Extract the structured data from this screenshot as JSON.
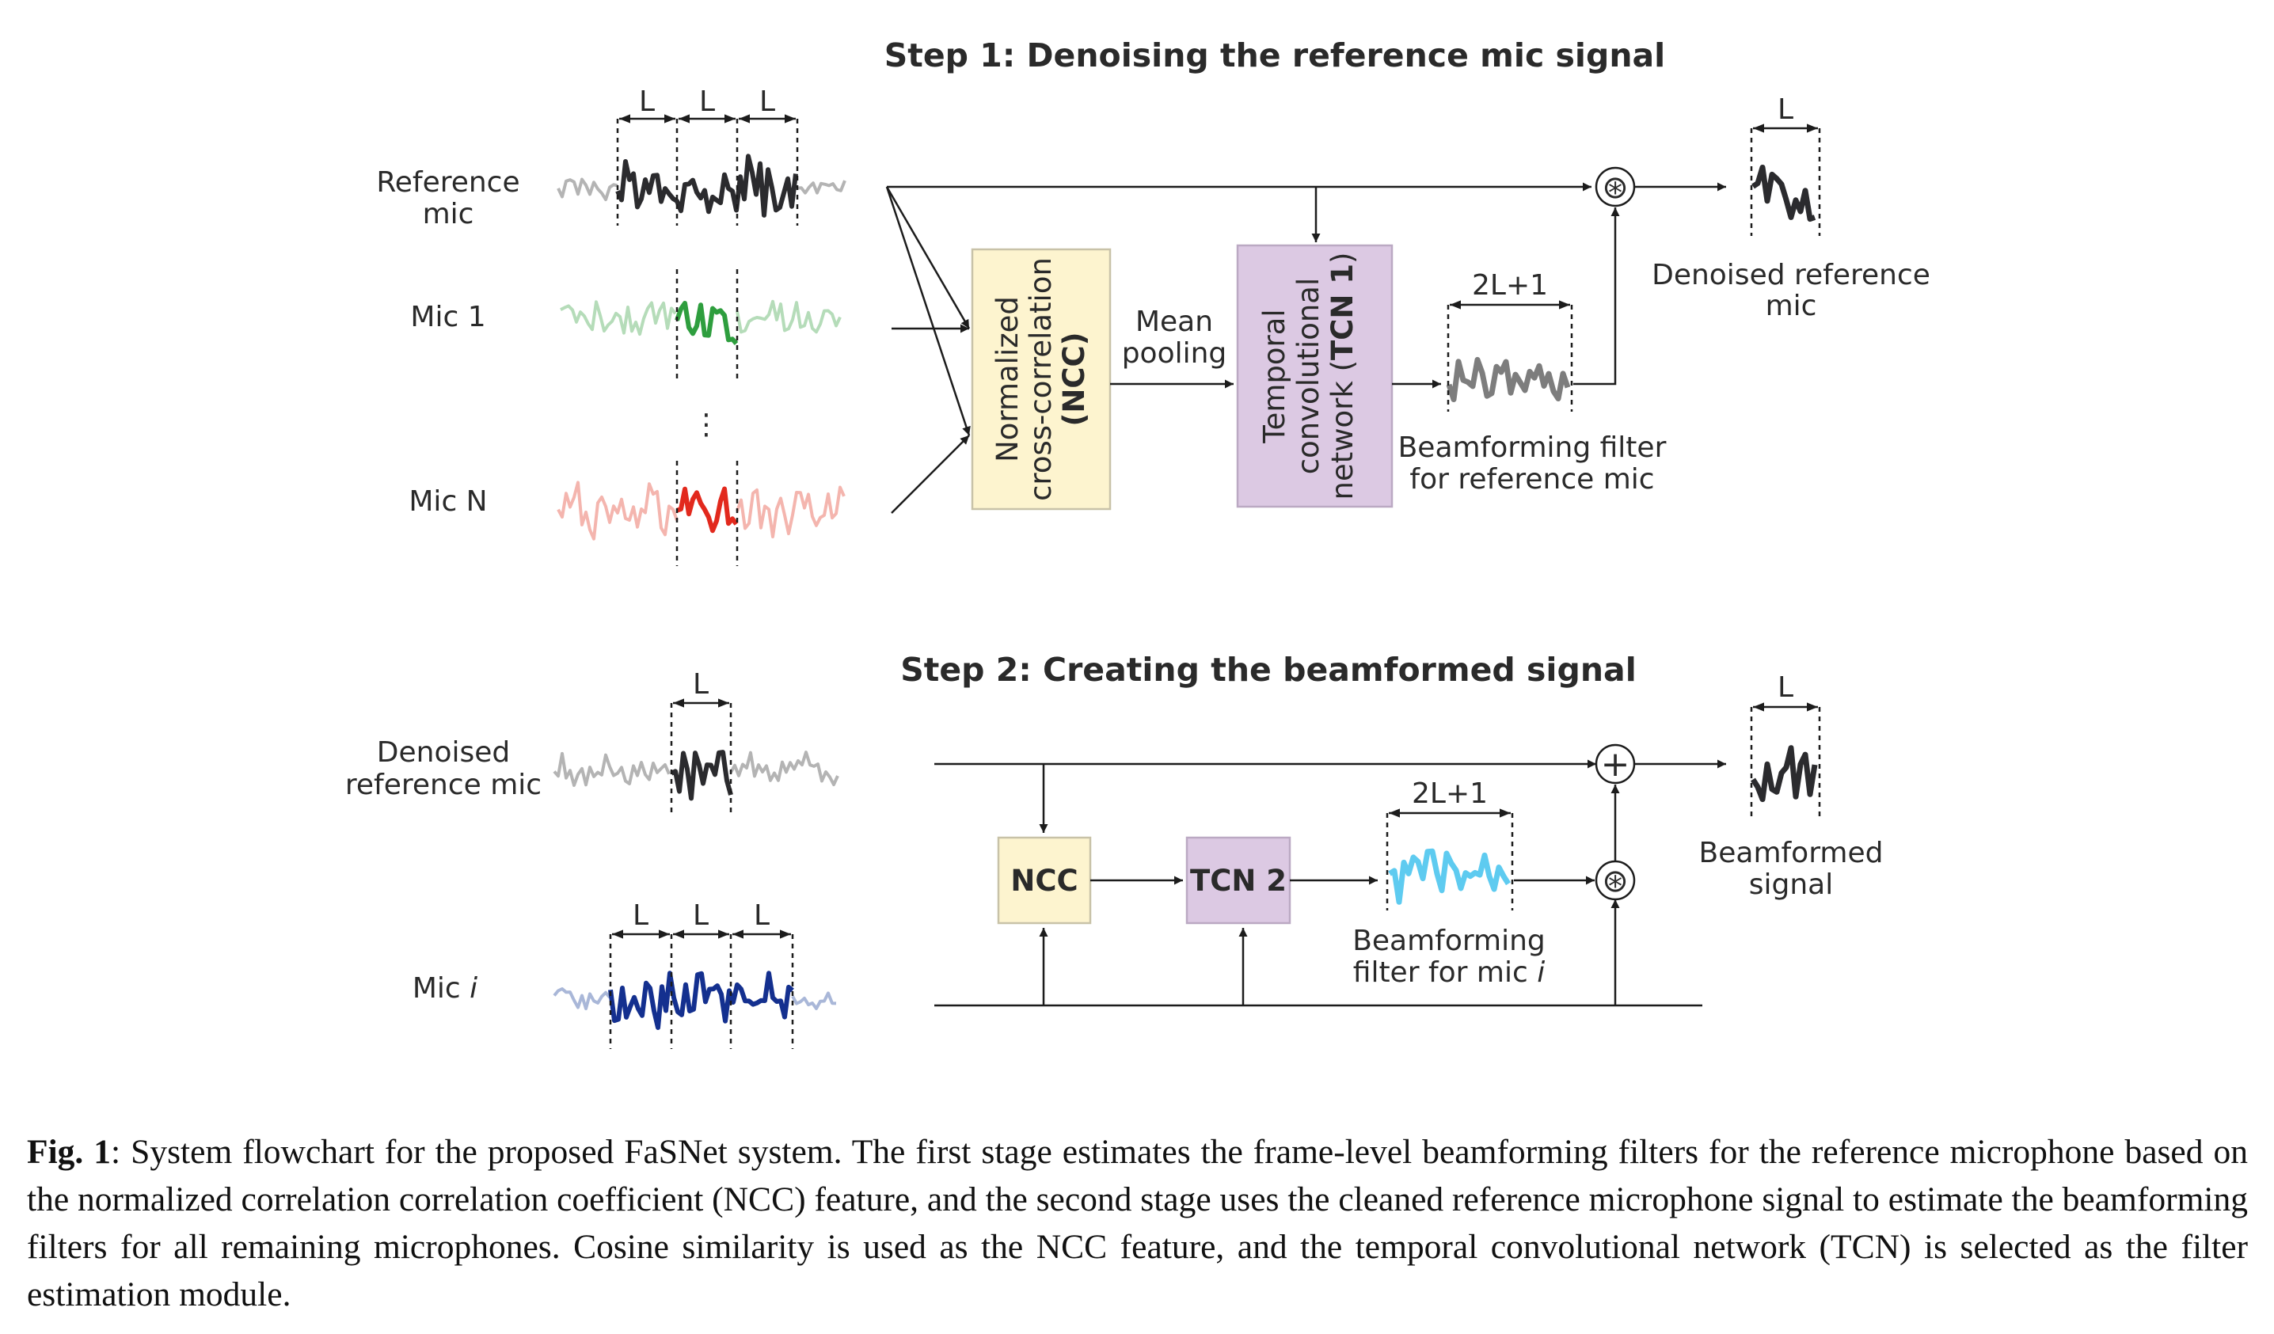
{
  "step1": {
    "title": "Step 1: Denoising the reference mic signal",
    "inputs": {
      "reference_line1": "Reference",
      "reference_line2": "mic",
      "mic1": "Mic 1",
      "ellipsis": "⋮",
      "micN": "Mic N"
    },
    "segment_label": "L",
    "ncc_box": {
      "line1": "Normalized",
      "line2": "cross-correlation",
      "line3": "(NCC)"
    },
    "pooling": {
      "line1": "Mean",
      "line2": "pooling"
    },
    "tcn_box": {
      "line1": "Temporal",
      "line2": "convolutional",
      "line3_prefix": "network (",
      "line3_bold": "TCN 1",
      "line3_suffix": ")"
    },
    "filter_len": "2L+1",
    "filter_caption": {
      "line1": "Beamforming filter",
      "line2": "for reference mic"
    },
    "multiply_op": "⊛",
    "output_len": "L",
    "output": {
      "line1": "Denoised reference",
      "line2": "mic"
    }
  },
  "step2": {
    "title": "Step 2: Creating the beamformed signal",
    "inputs": {
      "denoised_line1": "Denoised",
      "denoised_line2": "reference mic",
      "mic_i_prefix": "Mic ",
      "mic_i_italic": "i"
    },
    "segment_label": "L",
    "ncc_box": "NCC",
    "tcn_box": "TCN 2",
    "filter_len": "2L+1",
    "filter_caption": {
      "line1": "Beamforming",
      "line2_prefix": "filter for mic ",
      "line2_italic": "i"
    },
    "multiply_op": "⊛",
    "add_op": "+",
    "output_len": "L",
    "output": {
      "line1": "Beamformed",
      "line2": "signal"
    }
  },
  "colors": {
    "reference": "#2b2b2e",
    "reference_faded": "#b4b4b4",
    "mic1": "#2e9e3e",
    "mic1_faded": "#b5dcb9",
    "micN": "#e2291d",
    "micN_faded": "#f4b5ae",
    "mic_i": "#14308f",
    "mic_i_faded": "#a9b7d8",
    "filter1": "#7d7d7d",
    "filter2": "#5ecbf0",
    "ncc_fill": "#fdf4cf",
    "tcn_fill": "#dcc9e3"
  },
  "caption": {
    "label": "Fig. 1",
    "text": ": System flowchart for the proposed FaSNet system.  The first stage estimates the frame-level beamforming filters for the reference microphone based on the normalized correlation correlation coefficient (NCC) feature, and the second stage uses the cleaned reference microphone signal to estimate the beamforming filters for all remaining microphones. Cosine similarity is used as the NCC feature, and the temporal convolutional network (TCN) is selected as the filter estimation module."
  }
}
